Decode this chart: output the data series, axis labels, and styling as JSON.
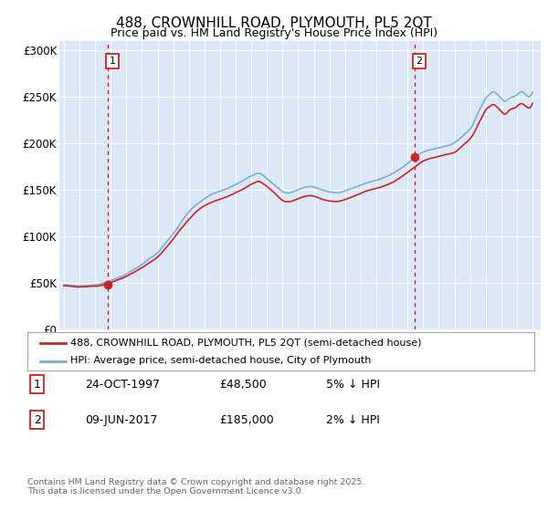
{
  "title_line1": "488, CROWNHILL ROAD, PLYMOUTH, PL5 2QT",
  "title_line2": "Price paid vs. HM Land Registry's House Price Index (HPI)",
  "plot_bg_color": "#dce8f8",
  "ylim": [
    0,
    310000
  ],
  "yticks": [
    0,
    50000,
    100000,
    150000,
    200000,
    250000,
    300000
  ],
  "ytick_labels": [
    "£0",
    "£50K",
    "£100K",
    "£150K",
    "£200K",
    "£250K",
    "£300K"
  ],
  "sale1_year": 1997.82,
  "sale1_price": 48500,
  "sale2_year": 2017.44,
  "sale2_price": 185000,
  "hpi_color": "#7aadd4",
  "price_color": "#cc2222",
  "legend_label1": "488, CROWNHILL ROAD, PLYMOUTH, PL5 2QT (semi-detached house)",
  "legend_label2": "HPI: Average price, semi-detached house, City of Plymouth",
  "table_rows": [
    [
      "1",
      "24-OCT-1997",
      "£48,500",
      "5% ↓ HPI"
    ],
    [
      "2",
      "09-JUN-2017",
      "£185,000",
      "2% ↓ HPI"
    ]
  ],
  "footer": "Contains HM Land Registry data © Crown copyright and database right 2025.\nThis data is licensed under the Open Government Licence v3.0.",
  "xmin": 1994.7,
  "xmax": 2025.5
}
